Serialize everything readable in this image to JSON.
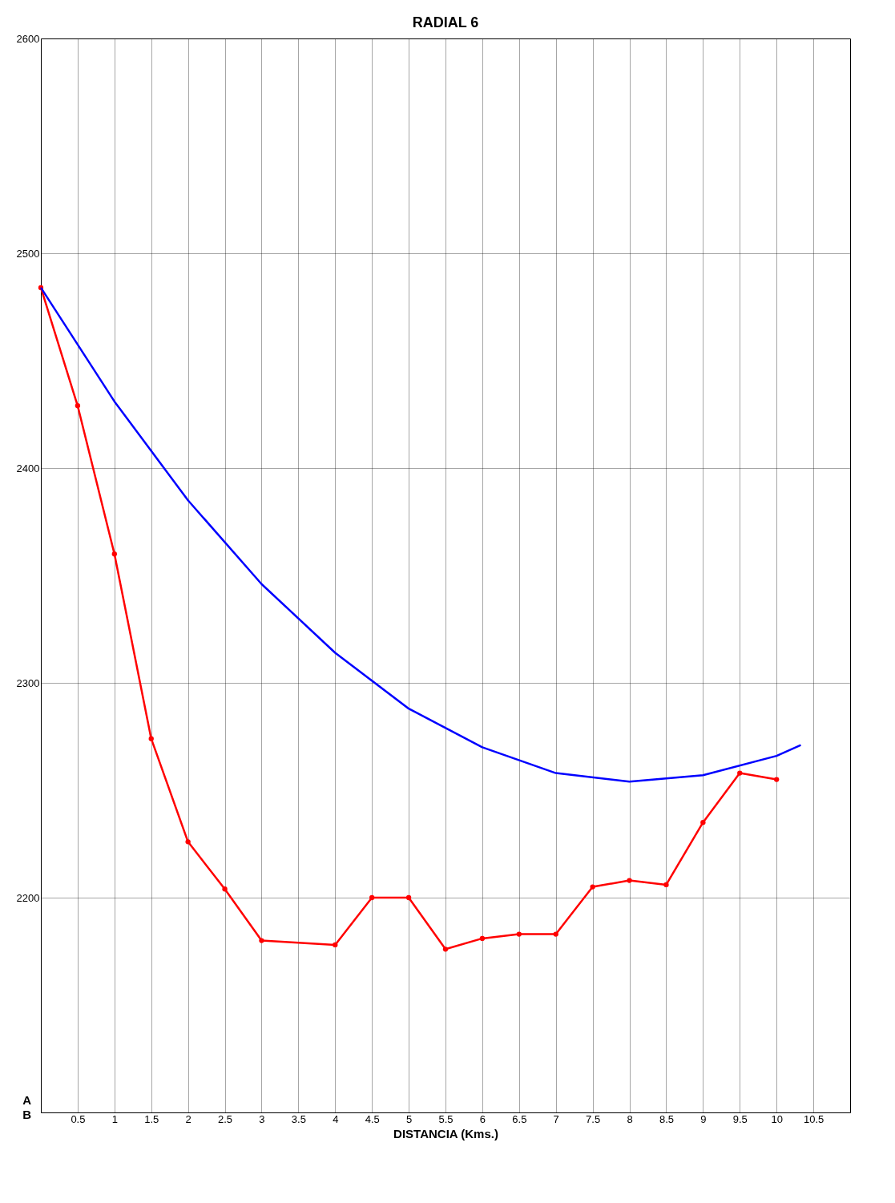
{
  "chart_data": {
    "type": "line",
    "title": "RADIAL 6",
    "xlabel": "DISTANCIA (Kms.)",
    "annotations": [
      "A",
      "B"
    ],
    "xlim": [
      0,
      11
    ],
    "ylim": [
      2100,
      2600
    ],
    "xticks": [
      {
        "value": 0,
        "label": null
      },
      0.5,
      1,
      1.5,
      2,
      2.5,
      3,
      3.5,
      4,
      4.5,
      5,
      5.5,
      6,
      6.5,
      7,
      7.5,
      8,
      8.5,
      9,
      9.5,
      10,
      10.5
    ],
    "yticks": [
      2200,
      2300,
      2400,
      2500,
      2600
    ],
    "grid": true,
    "line_style": "solid",
    "series": [
      {
        "color": "#ff0000",
        "marker": "circle",
        "x": [
          0,
          0.5,
          1,
          1.5,
          2,
          2.5,
          3,
          4,
          4.5,
          5,
          5.5,
          6,
          6.5,
          7,
          7.5,
          8,
          8.5,
          9,
          9.5,
          10
        ],
        "values": [
          2484,
          2429,
          2360,
          2274,
          2226,
          2204,
          2180,
          2178,
          2200,
          2200,
          2176,
          2181,
          2183,
          2183,
          2205,
          2208,
          2206,
          2235,
          2258,
          2255
        ]
      },
      {
        "color": "#0000ff",
        "marker": "none",
        "x": [
          0,
          1,
          2,
          3,
          4,
          5,
          6,
          7,
          8,
          9,
          10,
          10.33
        ],
        "values": [
          2484,
          2431,
          2385,
          2346,
          2314,
          2288,
          2270,
          2258,
          2254,
          2257,
          2266,
          2271
        ]
      }
    ]
  }
}
